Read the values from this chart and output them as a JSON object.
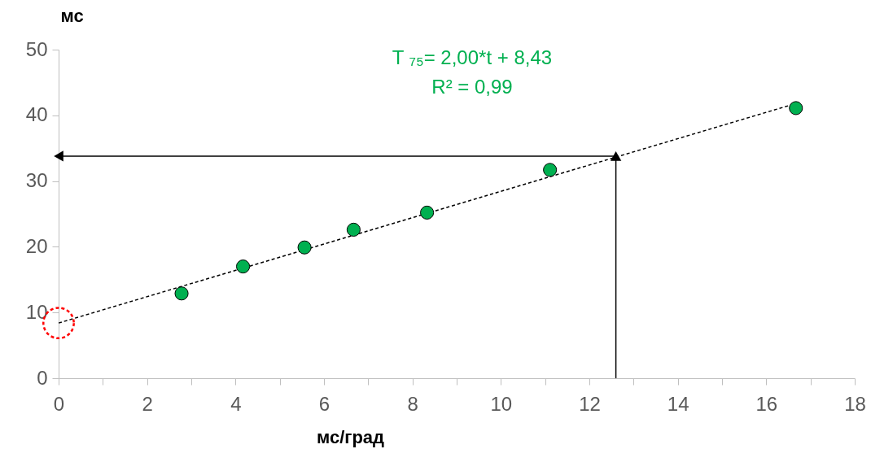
{
  "chart_data": {
    "type": "scatter",
    "xlabel": "мс/град",
    "ylabel": "мс",
    "annotations": [
      "T ₇₅= 2,00*t + 8,43",
      "R² = 0,99"
    ],
    "series": [
      {
        "type": "line",
        "color": "#000000",
        "x": [
          0,
          16.67
        ],
        "values": [
          8.4,
          41.8
        ],
        "marker": "none",
        "line_style": "dashed"
      },
      {
        "color": "#00b050",
        "x": [
          2.78,
          4.17,
          5.56,
          6.67,
          8.33,
          11.11,
          16.67
        ],
        "values": [
          12.9,
          17.0,
          19.9,
          22.6,
          25.2,
          31.7,
          41.1
        ],
        "marker": "circle"
      },
      {
        "color": "#ff0000",
        "x": [
          0
        ],
        "values": [
          8.4
        ],
        "marker": "circle",
        "line_style": "dashed"
      },
      {
        "type": "line",
        "color": "#000000",
        "x": [
          12.6,
          12.6
        ],
        "values": [
          0,
          33.8
        ],
        "marker": "triangle"
      },
      {
        "type": "line",
        "color": "#000000",
        "x": [
          12.6,
          0
        ],
        "values": [
          33.8,
          33.8
        ],
        "marker": "triangle"
      }
    ],
    "xlim": [
      0,
      18
    ],
    "ylim": [
      0,
      50
    ],
    "xticks": [
      0,
      {
        "value": 1,
        "label": null
      },
      2,
      {
        "value": 3,
        "label": null
      },
      4,
      {
        "value": 5,
        "label": null
      },
      6,
      {
        "value": 7,
        "label": null
      },
      8,
      {
        "value": 9,
        "label": null
      },
      10,
      {
        "value": 11,
        "label": null
      },
      12,
      {
        "value": 13,
        "label": null
      },
      14,
      {
        "value": 15,
        "label": null
      },
      16,
      {
        "value": 17,
        "label": null
      },
      18
    ],
    "yticks": [
      0,
      10,
      20,
      30,
      40,
      50
    ],
    "grid": false
  }
}
